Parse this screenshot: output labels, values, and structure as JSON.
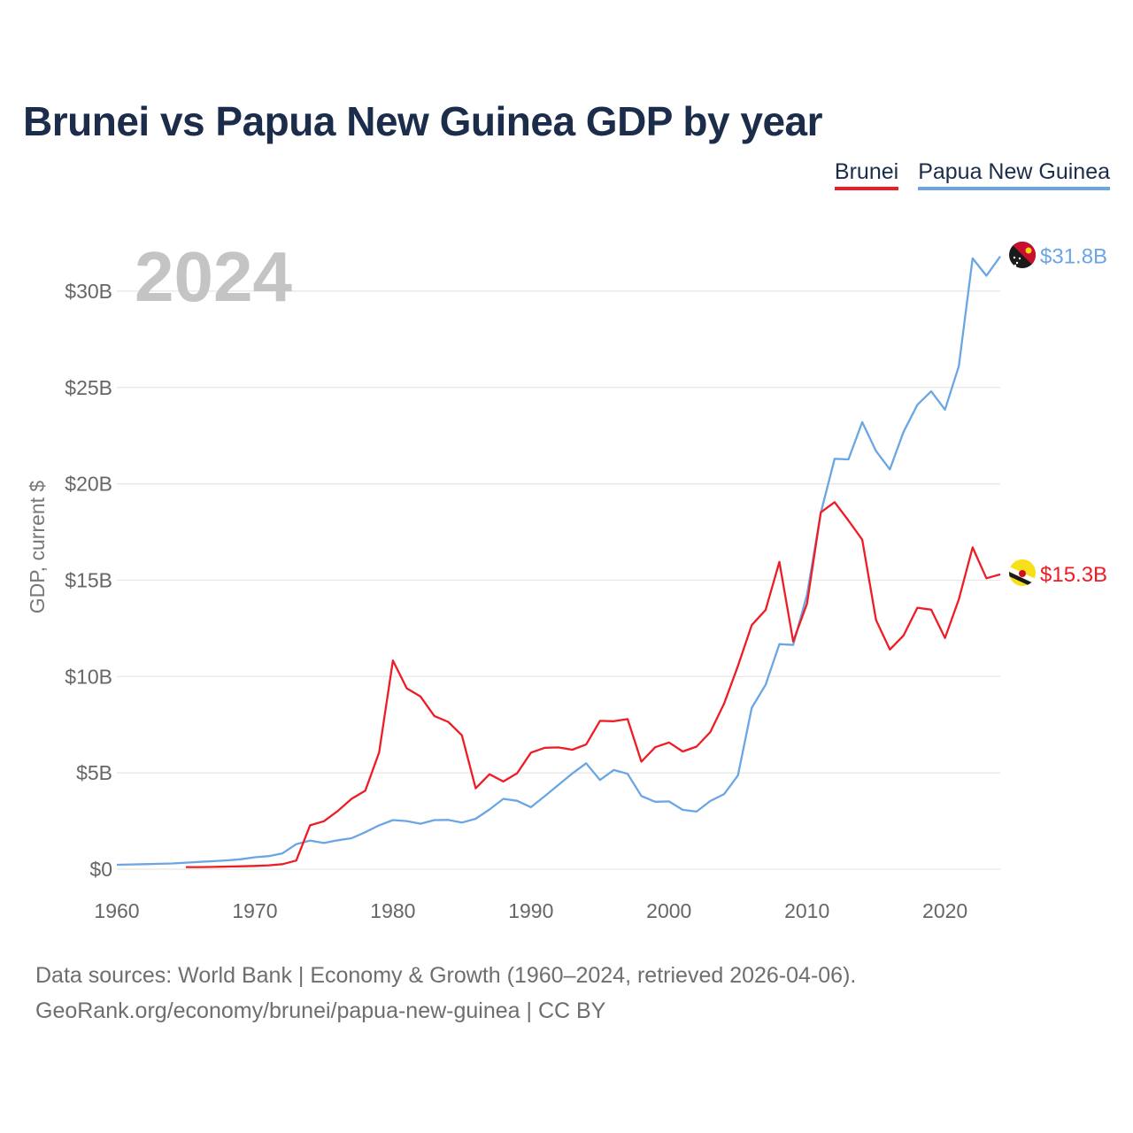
{
  "title": "Brunei vs Papua New Guinea GDP by year",
  "legend": {
    "brunei": "Brunei",
    "png": "Papua New Guinea"
  },
  "year_label": "2024",
  "footer": {
    "line1": "Data sources: World Bank | Economy & Growth (1960–2024, retrieved 2026-04-06).",
    "line2": "GeoRank.org/economy/brunei/papua-new-guinea | CC BY"
  },
  "colors": {
    "brunei": "#ee1c25",
    "png": "#6aa6e3",
    "grid": "#e6e6e6"
  },
  "chart_data": {
    "type": "line",
    "title": "Brunei vs Papua New Guinea GDP by year",
    "xlabel": "",
    "ylabel": "GDP, current $",
    "xlim": [
      1960,
      2024
    ],
    "ylim": [
      0,
      32
    ],
    "x_ticks": [
      1960,
      1970,
      1980,
      1990,
      2000,
      2010,
      2020
    ],
    "x_tick_labels": [
      "1960",
      "1970",
      "1980",
      "1990",
      "2000",
      "2010",
      "2020"
    ],
    "y_ticks": [
      0,
      5,
      10,
      15,
      20,
      25,
      30
    ],
    "y_tick_labels": [
      "$0",
      "$5B",
      "$10B",
      "$15B",
      "$20B",
      "$25B",
      "$30B"
    ],
    "series": [
      {
        "name": "Papua New Guinea",
        "color": "#6aa6e3",
        "end_label": "$31.8B",
        "x": [
          1960,
          1961,
          1962,
          1963,
          1964,
          1965,
          1966,
          1967,
          1968,
          1969,
          1970,
          1971,
          1972,
          1973,
          1974,
          1975,
          1976,
          1977,
          1978,
          1979,
          1980,
          1981,
          1982,
          1983,
          1984,
          1985,
          1986,
          1987,
          1988,
          1989,
          1990,
          1991,
          1992,
          1993,
          1994,
          1995,
          1996,
          1997,
          1998,
          1999,
          2000,
          2001,
          2002,
          2003,
          2004,
          2005,
          2006,
          2007,
          2008,
          2009,
          2010,
          2011,
          2012,
          2013,
          2014,
          2015,
          2016,
          2017,
          2018,
          2019,
          2020,
          2021,
          2022,
          2023,
          2024
        ],
        "values": [
          0.23,
          0.25,
          0.26,
          0.28,
          0.3,
          0.34,
          0.38,
          0.42,
          0.46,
          0.52,
          0.62,
          0.68,
          0.82,
          1.3,
          1.49,
          1.36,
          1.5,
          1.61,
          1.92,
          2.28,
          2.55,
          2.5,
          2.36,
          2.55,
          2.56,
          2.42,
          2.62,
          3.1,
          3.65,
          3.55,
          3.22,
          3.79,
          4.38,
          4.97,
          5.5,
          4.63,
          5.15,
          4.95,
          3.8,
          3.5,
          3.52,
          3.08,
          2.99,
          3.54,
          3.9,
          4.87,
          8.38,
          9.57,
          11.68,
          11.64,
          14.25,
          18.5,
          21.3,
          21.27,
          23.2,
          21.7,
          20.75,
          22.7,
          24.1,
          24.8,
          23.85,
          26.1,
          31.7,
          30.8,
          31.8
        ]
      },
      {
        "name": "Brunei",
        "color": "#ee1c25",
        "end_label": "$15.3B",
        "x": [
          1965,
          1966,
          1967,
          1968,
          1969,
          1970,
          1971,
          1972,
          1973,
          1974,
          1975,
          1976,
          1977,
          1978,
          1979,
          1980,
          1981,
          1982,
          1983,
          1984,
          1985,
          1986,
          1987,
          1988,
          1989,
          1990,
          1991,
          1992,
          1993,
          1994,
          1995,
          1996,
          1997,
          1998,
          1999,
          2000,
          2001,
          2002,
          2003,
          2004,
          2005,
          2006,
          2007,
          2008,
          2009,
          2010,
          2011,
          2012,
          2013,
          2014,
          2015,
          2016,
          2017,
          2018,
          2019,
          2020,
          2021,
          2022,
          2023,
          2024
        ],
        "values": [
          0.11,
          0.11,
          0.12,
          0.14,
          0.15,
          0.17,
          0.2,
          0.26,
          0.45,
          2.28,
          2.49,
          3.02,
          3.65,
          4.08,
          6.06,
          10.83,
          9.39,
          8.96,
          7.95,
          7.65,
          6.95,
          4.2,
          4.93,
          4.55,
          4.98,
          6.05,
          6.3,
          6.32,
          6.2,
          6.47,
          7.7,
          7.68,
          7.79,
          5.58,
          6.33,
          6.58,
          6.11,
          6.36,
          7.12,
          8.6,
          10.55,
          12.67,
          13.45,
          15.95,
          11.82,
          13.78,
          18.52,
          19.05,
          18.1,
          17.1,
          12.93,
          11.4,
          12.13,
          13.57,
          13.47,
          12.0,
          14.0,
          16.7,
          15.1,
          15.3
        ]
      }
    ]
  }
}
